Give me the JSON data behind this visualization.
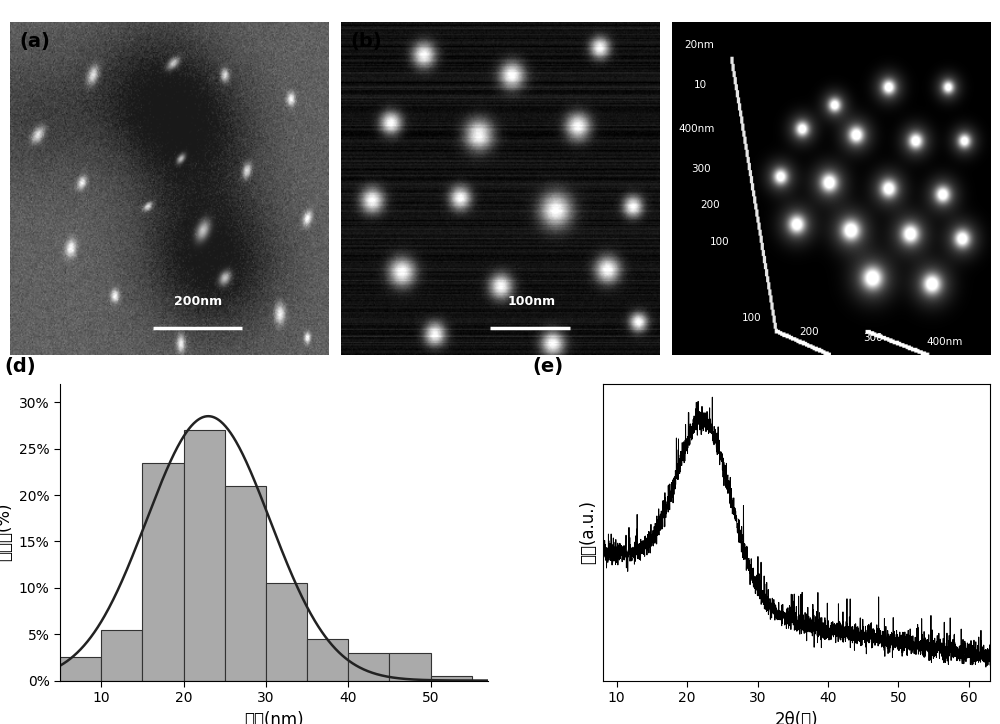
{
  "panel_label_fontsize": 14,
  "panel_label_fontweight": "bold",
  "hist_bins": [
    5,
    10,
    15,
    20,
    25,
    30,
    35,
    40,
    45,
    50,
    55
  ],
  "hist_values": [
    2.5,
    5.5,
    23.5,
    27.0,
    21.0,
    10.5,
    4.5,
    3.0,
    3.0,
    0.5
  ],
  "hist_color": "#aaaaaa",
  "hist_edgecolor": "#333333",
  "hist_xlabel": "直径(nm)",
  "hist_ylabel": "百分数(%)",
  "hist_yticks": [
    0,
    5,
    10,
    15,
    20,
    25,
    30
  ],
  "hist_ytick_labels": [
    "0%",
    "5%",
    "10%",
    "15%",
    "20%",
    "25%",
    "30%"
  ],
  "hist_xticks": [
    10,
    20,
    30,
    40,
    50
  ],
  "hist_xlim": [
    5,
    57
  ],
  "hist_ylim": [
    0,
    32
  ],
  "gauss_mean": 23.0,
  "gauss_std": 7.5,
  "gauss_amplitude": 28.5,
  "xrd_xlabel": "2θ(度)",
  "xrd_ylabel": "强度(a.u.)",
  "xrd_xlim": [
    8,
    63
  ],
  "xrd_xticks": [
    10,
    20,
    30,
    40,
    50,
    60
  ],
  "background_color": "#ffffff"
}
